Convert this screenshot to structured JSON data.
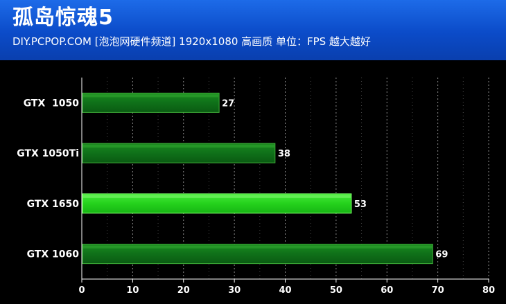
{
  "header": {
    "title": "孤岛惊魂5",
    "subtitle": "DIY.PCPOP.COM [泡泡网硬件频道] 1920x1080 高画质  单位：FPS 越大越好"
  },
  "colors": {
    "header_bg": "#0b4bc8",
    "background": "#000000",
    "bar_dark": "#0d7a14",
    "bar_highlight": "#2ee01f",
    "text": "#ffffff"
  },
  "chart_data": {
    "type": "bar",
    "orientation": "horizontal",
    "categories": [
      "GTX  1050",
      "GTX 1050Ti",
      "GTX 1650",
      "GTX 1060"
    ],
    "values": [
      27,
      38,
      53,
      69
    ],
    "highlight": "GTX 1650",
    "xlim": [
      0,
      80
    ],
    "xticks": [
      0,
      10,
      20,
      30,
      40,
      50,
      60,
      70,
      80
    ],
    "grid": true
  }
}
